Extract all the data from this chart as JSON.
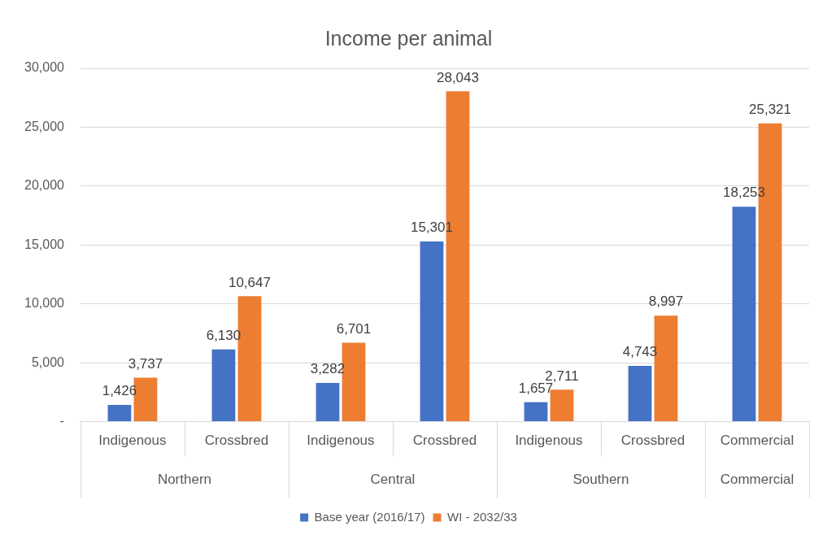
{
  "chart_data": {
    "type": "bar",
    "title": "Income per animal",
    "categories": [
      "Indigenous",
      "Crossbred",
      "Indigenous",
      "Crossbred",
      "Indigenous",
      "Crossbred",
      "Commercial"
    ],
    "series": [
      {
        "name": "Base year (2016/17)",
        "color": "#4472c4",
        "values": [
          1426,
          6130,
          3282,
          15301,
          1657,
          4743,
          18253
        ],
        "value_labels": [
          "1,426",
          "6,130",
          "3,282",
          "15,301",
          "1,657",
          "4,743",
          "18,253"
        ]
      },
      {
        "name": "WI - 2032/33",
        "color": "#ed7d31",
        "values": [
          3737,
          10647,
          6701,
          28043,
          2711,
          8997,
          25321
        ],
        "value_labels": [
          "3,737",
          "10,647",
          "6,701",
          "28,043",
          "2,711",
          "8,997",
          "25,321"
        ]
      }
    ],
    "annotations": [
      "Northern",
      "Central",
      "Southern",
      "Commercial"
    ],
    "ylim": [
      0,
      30000
    ],
    "yticks": [
      {
        "value": 0,
        "label": "-"
      },
      {
        "value": 5000,
        "label": "5,000"
      },
      {
        "value": 10000,
        "label": "10,000"
      },
      {
        "value": 15000,
        "label": "15,000"
      },
      {
        "value": 20000,
        "label": "20,000"
      },
      {
        "value": 25000,
        "label": "25,000"
      },
      {
        "value": 30000,
        "label": "30,000"
      }
    ],
    "grid": "y",
    "legend": "bottom"
  }
}
